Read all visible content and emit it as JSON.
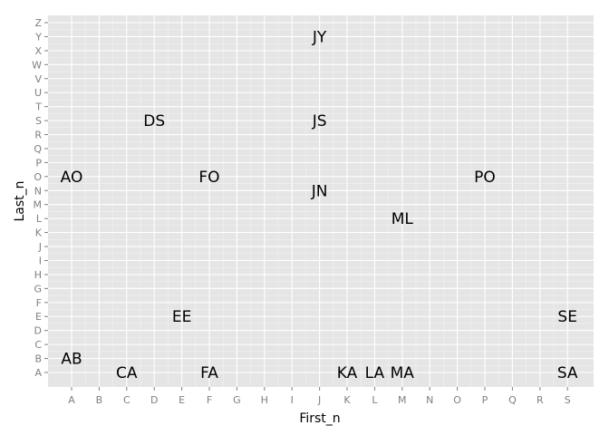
{
  "chart_data": {
    "type": "scatter",
    "title": "",
    "xlabel": "First_n",
    "ylabel": "Last_n",
    "x_categories": [
      "A",
      "B",
      "C",
      "D",
      "E",
      "F",
      "G",
      "H",
      "I",
      "J",
      "K",
      "L",
      "M",
      "N",
      "O",
      "P",
      "Q",
      "R",
      "S"
    ],
    "y_categories": [
      "A",
      "B",
      "C",
      "D",
      "E",
      "F",
      "G",
      "H",
      "I",
      "J",
      "K",
      "L",
      "M",
      "N",
      "O",
      "P",
      "Q",
      "R",
      "S",
      "T",
      "U",
      "V",
      "W",
      "X",
      "Y",
      "Z"
    ],
    "grid": true,
    "legend": "none",
    "colors": {
      "panel": "#e5e5e5",
      "gridline": "#ffffff",
      "tick_text": "#7f7f7f",
      "label_text": "#000000"
    },
    "points": [
      {
        "label": "AB",
        "x": "A",
        "y": "B"
      },
      {
        "label": "AO",
        "x": "A",
        "y": "O"
      },
      {
        "label": "CA",
        "x": "C",
        "y": "A"
      },
      {
        "label": "DS",
        "x": "D",
        "y": "S"
      },
      {
        "label": "EE",
        "x": "E",
        "y": "E"
      },
      {
        "label": "FA",
        "x": "F",
        "y": "A"
      },
      {
        "label": "FO",
        "x": "F",
        "y": "O"
      },
      {
        "label": "JY",
        "x": "J",
        "y": "Y"
      },
      {
        "label": "JS",
        "x": "J",
        "y": "S"
      },
      {
        "label": "JN",
        "x": "J",
        "y": "N"
      },
      {
        "label": "KA",
        "x": "K",
        "y": "A"
      },
      {
        "label": "LA",
        "x": "L",
        "y": "A"
      },
      {
        "label": "MA",
        "x": "M",
        "y": "A"
      },
      {
        "label": "ML",
        "x": "M",
        "y": "L"
      },
      {
        "label": "PO",
        "x": "P",
        "y": "O"
      },
      {
        "label": "SE",
        "x": "S",
        "y": "E"
      },
      {
        "label": "SA",
        "x": "S",
        "y": "A"
      }
    ]
  }
}
